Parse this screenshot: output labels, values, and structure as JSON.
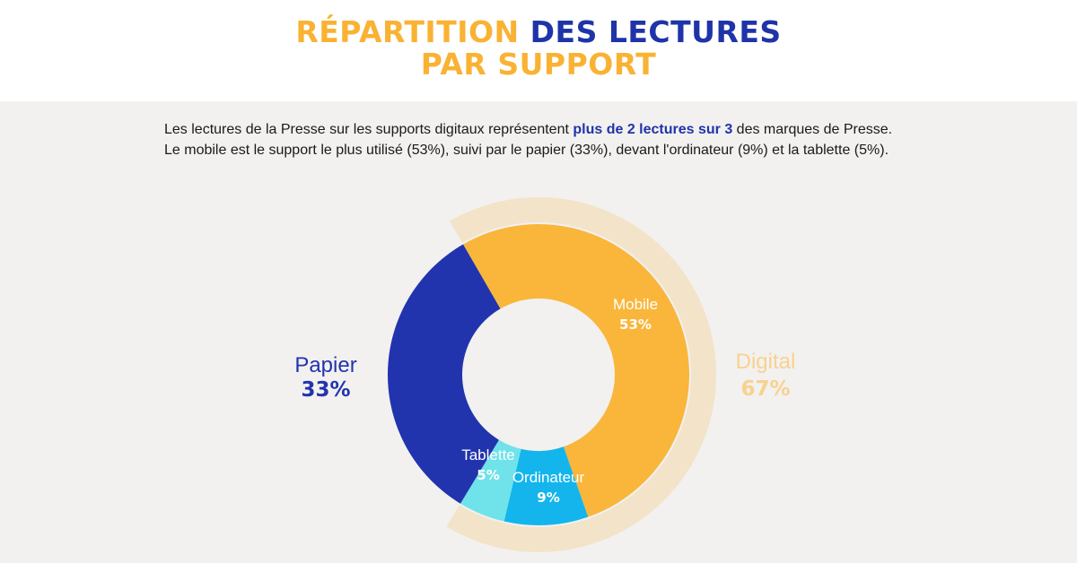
{
  "header": {
    "title_part1": "RÉPARTITION",
    "title_part2": "DES LECTURES",
    "title_line2": "PAR SUPPORT"
  },
  "intro": {
    "line1_before": "Les lectures de la Presse sur les supports digitaux représentent",
    "line1_highlight": "plus de 2 lectures sur 3",
    "line1_after": "des marques de Presse.",
    "line2": "Le mobile est le support le plus utilisé (53%), suivi par le papier (33%), devant l'ordinateur (9%) et la tablette (5%)."
  },
  "colors": {
    "title_orange": "#f9b233",
    "title_blue": "#1f34a8",
    "background": "#f2f1f0"
  },
  "chart_data": {
    "type": "pie",
    "variant": "donut",
    "unit": "%",
    "slices": [
      {
        "name": "Mobile",
        "label": "53%",
        "value": 53,
        "color": "#f9b63a"
      },
      {
        "name": "Ordinateur",
        "label": "9%",
        "value": 9,
        "color": "#13b5ec"
      },
      {
        "name": "Tablette",
        "label": "5%",
        "value": 5,
        "color": "#6fe2ea"
      },
      {
        "name": "Papier",
        "label": "33%",
        "value": 33,
        "color": "#2234ad"
      }
    ],
    "groups": [
      {
        "name": "Digital",
        "label": "67%",
        "value": 67,
        "members": [
          "Mobile",
          "Ordinateur",
          "Tablette"
        ],
        "color": "#f3e3c8",
        "text_color": "#f8d28d"
      },
      {
        "name": "Papier",
        "label": "33%",
        "value": 33,
        "members": [
          "Papier"
        ],
        "text_color": "#2234ad"
      }
    ]
  }
}
